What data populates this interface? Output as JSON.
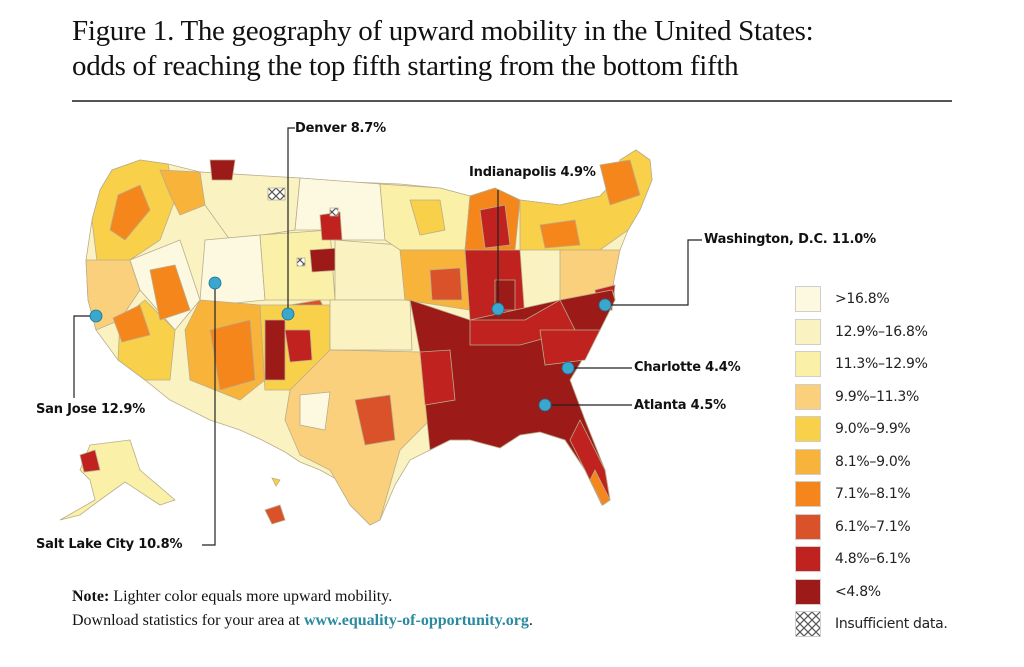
{
  "figure": {
    "title_line1": "Figure 1. The geography of upward mobility in the United States:",
    "title_line2": "odds of reaching the top fifth starting from the bottom fifth"
  },
  "cities": [
    {
      "name": "Denver",
      "value": "8.7%",
      "label": "Denver 8.7%"
    },
    {
      "name": "Indianapolis",
      "value": "4.9%",
      "label": "Indianapolis 4.9%"
    },
    {
      "name": "Washington, D.C.",
      "value": "11.0%",
      "label": "Washington, D.C. 11.0%"
    },
    {
      "name": "San Jose",
      "value": "12.9%",
      "label": "San Jose 12.9%"
    },
    {
      "name": "Charlotte",
      "value": "4.4%",
      "label": "Charlotte 4.4%"
    },
    {
      "name": "Atlanta",
      "value": "4.5%",
      "label": "Atlanta 4.5%"
    },
    {
      "name": "Salt Lake City",
      "value": "10.8%",
      "label": "Salt Lake City 10.8%"
    }
  ],
  "legend": [
    {
      "label": ">16.8%",
      "color": "#fdf9e0"
    },
    {
      "label": "12.9%–16.8%",
      "color": "#fbf2c2"
    },
    {
      "label": "11.3%–12.9%",
      "color": "#faf0a8"
    },
    {
      "label": "9.9%–11.3%",
      "color": "#fbd07c"
    },
    {
      "label": "9.0%–9.9%",
      "color": "#f9d049"
    },
    {
      "label": "8.1%–9.0%",
      "color": "#f8b43a"
    },
    {
      "label": "7.1%–8.1%",
      "color": "#f5861c"
    },
    {
      "label": "6.1%–7.1%",
      "color": "#d9522a"
    },
    {
      "label": "4.8%–6.1%",
      "color": "#c0221f"
    },
    {
      "label": "<4.8%",
      "color": "#9c1a17"
    },
    {
      "label": "Insufficient data.",
      "color": "pattern-crosshatch"
    }
  ],
  "marker_color": "#3aa7cf",
  "note": {
    "bold": "Note:",
    "line1": " Lighter color equals more upward mobility.",
    "line2_prefix": "Download statistics for your area at ",
    "link": "www.equality-of-opportunity.org",
    "line2_suffix": "."
  }
}
